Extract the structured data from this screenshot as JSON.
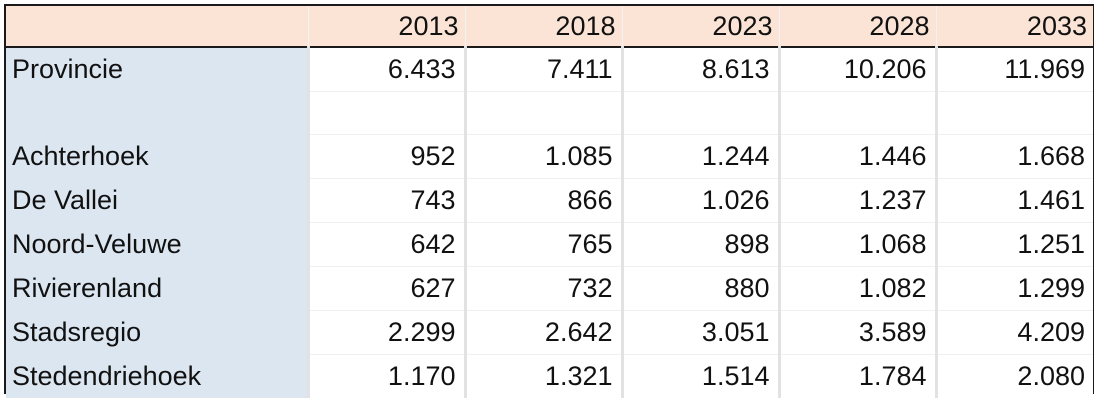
{
  "table": {
    "corner": "",
    "years": [
      "2013",
      "2018",
      "2023",
      "2028",
      "2033"
    ],
    "rows": [
      {
        "label": "Provincie",
        "values": [
          "6.433",
          "7.411",
          "8.613",
          "10.206",
          "11.969"
        ]
      },
      {
        "label": "",
        "values": [
          "",
          "",
          "",
          "",
          ""
        ]
      },
      {
        "label": "Achterhoek",
        "values": [
          "952",
          "1.085",
          "1.244",
          "1.446",
          "1.668"
        ]
      },
      {
        "label": "De Vallei",
        "values": [
          "743",
          "866",
          "1.026",
          "1.237",
          "1.461"
        ]
      },
      {
        "label": "Noord-Veluwe",
        "values": [
          "642",
          "765",
          "898",
          "1.068",
          "1.251"
        ]
      },
      {
        "label": "Rivierenland",
        "values": [
          "627",
          "732",
          "880",
          "1.082",
          "1.299"
        ]
      },
      {
        "label": "Stadsregio",
        "values": [
          "2.299",
          "2.642",
          "3.051",
          "3.589",
          "4.209"
        ]
      },
      {
        "label": "Stedendriehoek",
        "values": [
          "1.170",
          "1.321",
          "1.514",
          "1.784",
          "2.080"
        ]
      }
    ]
  },
  "colors": {
    "header_fill": "#fbe4d5",
    "label_column_fill": "#dce6f1",
    "grid_line": "#e2e2e2",
    "outer_border": "#1a1a1a"
  }
}
